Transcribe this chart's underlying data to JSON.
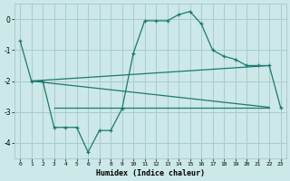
{
  "xlabel": "Humidex (Indice chaleur)",
  "bg_color": "#cce8e8",
  "grid_color": "#aacccc",
  "line_color": "#1a7a6e",
  "xlim": [
    -0.5,
    23.5
  ],
  "ylim": [
    -4.5,
    0.5
  ],
  "yticks": [
    0,
    -1,
    -2,
    -3,
    -4
  ],
  "xticks": [
    0,
    1,
    2,
    3,
    4,
    5,
    6,
    7,
    8,
    9,
    10,
    11,
    12,
    13,
    14,
    15,
    16,
    17,
    18,
    19,
    20,
    21,
    22,
    23
  ],
  "line1_x": [
    0,
    1,
    2,
    3,
    4,
    5,
    6,
    7,
    8,
    9,
    10,
    11,
    12,
    13,
    14,
    15,
    16,
    17,
    18,
    19,
    20,
    21,
    22,
    23
  ],
  "line1_y": [
    -0.7,
    -2.0,
    -2.0,
    -3.5,
    -3.5,
    -3.5,
    -4.3,
    -3.6,
    -3.6,
    -2.9,
    -1.1,
    -0.05,
    -0.05,
    -0.05,
    0.15,
    0.25,
    -0.15,
    -1.0,
    -1.2,
    -1.3,
    -1.5,
    -1.5,
    -1.5,
    -2.85
  ],
  "line2_x": [
    1,
    22
  ],
  "line2_y": [
    -2.0,
    -2.85
  ],
  "line3_x": [
    1,
    22
  ],
  "line3_y": [
    -2.0,
    -1.5
  ],
  "line4_x": [
    3,
    22
  ],
  "line4_y": [
    -2.85,
    -2.85
  ]
}
